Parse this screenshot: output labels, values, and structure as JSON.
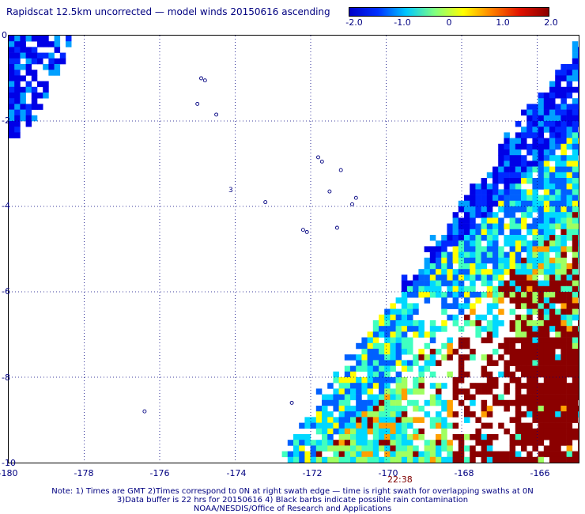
{
  "title": "Rapidscat 12.5km uncorrected — model winds 20150616 ascending",
  "colorbar": {
    "ticks": [
      "-2.0",
      "-1.0",
      "0",
      "1.0",
      "2.0"
    ],
    "colors": [
      "#0000c8",
      "#0030ff",
      "#00c8ff",
      "#80ff80",
      "#ffff00",
      "#ff8000",
      "#e01000",
      "#8b0000"
    ]
  },
  "axes": {
    "x_ticks": [
      "-180",
      "-178",
      "-176",
      "-174",
      "-172",
      "-170",
      "-168",
      "-166"
    ],
    "y_ticks": [
      "0",
      "-2",
      "-4",
      "-6",
      "-8",
      "-10"
    ],
    "xlim": [
      -180,
      -164.9
    ],
    "ylim": [
      -10,
      0
    ],
    "grid": true
  },
  "time_label": "22:38",
  "notes": [
    "Note: 1) Times are GMT 2)Times correspond to 0N at right swath edge — time is right swath for overlapping swaths at 0N",
    "3)Data buffer is 22 hrs for 20150616 4) Black barbs indicate possible rain contamination",
    "NOAA/NESDIS/Office of Research and Applications"
  ],
  "island_label": "3"
}
